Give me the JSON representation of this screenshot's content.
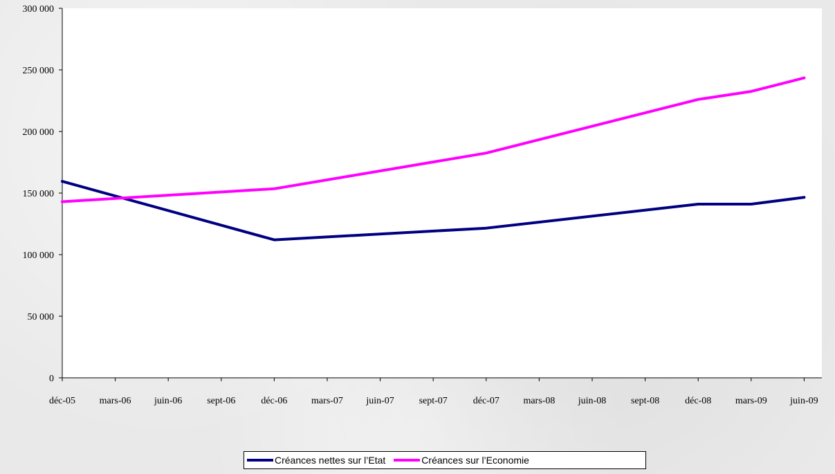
{
  "chart_data": {
    "type": "line",
    "title": "",
    "xlabel": "",
    "ylabel": "",
    "categories": [
      "déc-05",
      "mars-06",
      "juin-06",
      "sept-06",
      "déc-06",
      "mars-07",
      "juin-07",
      "sept-07",
      "déc-07",
      "mars-08",
      "juin-08",
      "sept-08",
      "déc-08",
      "mars-09",
      "juin-09"
    ],
    "ylim": [
      0,
      300000
    ],
    "yticks": [
      0,
      50000,
      100000,
      150000,
      200000,
      250000,
      300000
    ],
    "ytick_labels": [
      "0",
      "50 000",
      "100 000",
      "150 000",
      "200 000",
      "250 000",
      "300 000"
    ],
    "grid": false,
    "legend_position": "bottom",
    "series": [
      {
        "name": "Créances nettes sur l’Etat",
        "color": "#000080",
        "points": [
          {
            "x": "déc-05",
            "y": 159500
          },
          {
            "x": "déc-06",
            "y": 112000
          },
          {
            "x": "déc-07",
            "y": 121500
          },
          {
            "x": "déc-08",
            "y": 141000
          },
          {
            "x": "mars-09",
            "y": 141000
          },
          {
            "x": "juin-09",
            "y": 146500
          }
        ]
      },
      {
        "name": "Créances sur l’Economie",
        "color": "#ff00ff",
        "points": [
          {
            "x": "déc-05",
            "y": 143000
          },
          {
            "x": "déc-06",
            "y": 153500
          },
          {
            "x": "déc-07",
            "y": 182500
          },
          {
            "x": "déc-08",
            "y": 226000
          },
          {
            "x": "mars-09",
            "y": 232500
          },
          {
            "x": "juin-09",
            "y": 243500
          }
        ]
      }
    ]
  }
}
